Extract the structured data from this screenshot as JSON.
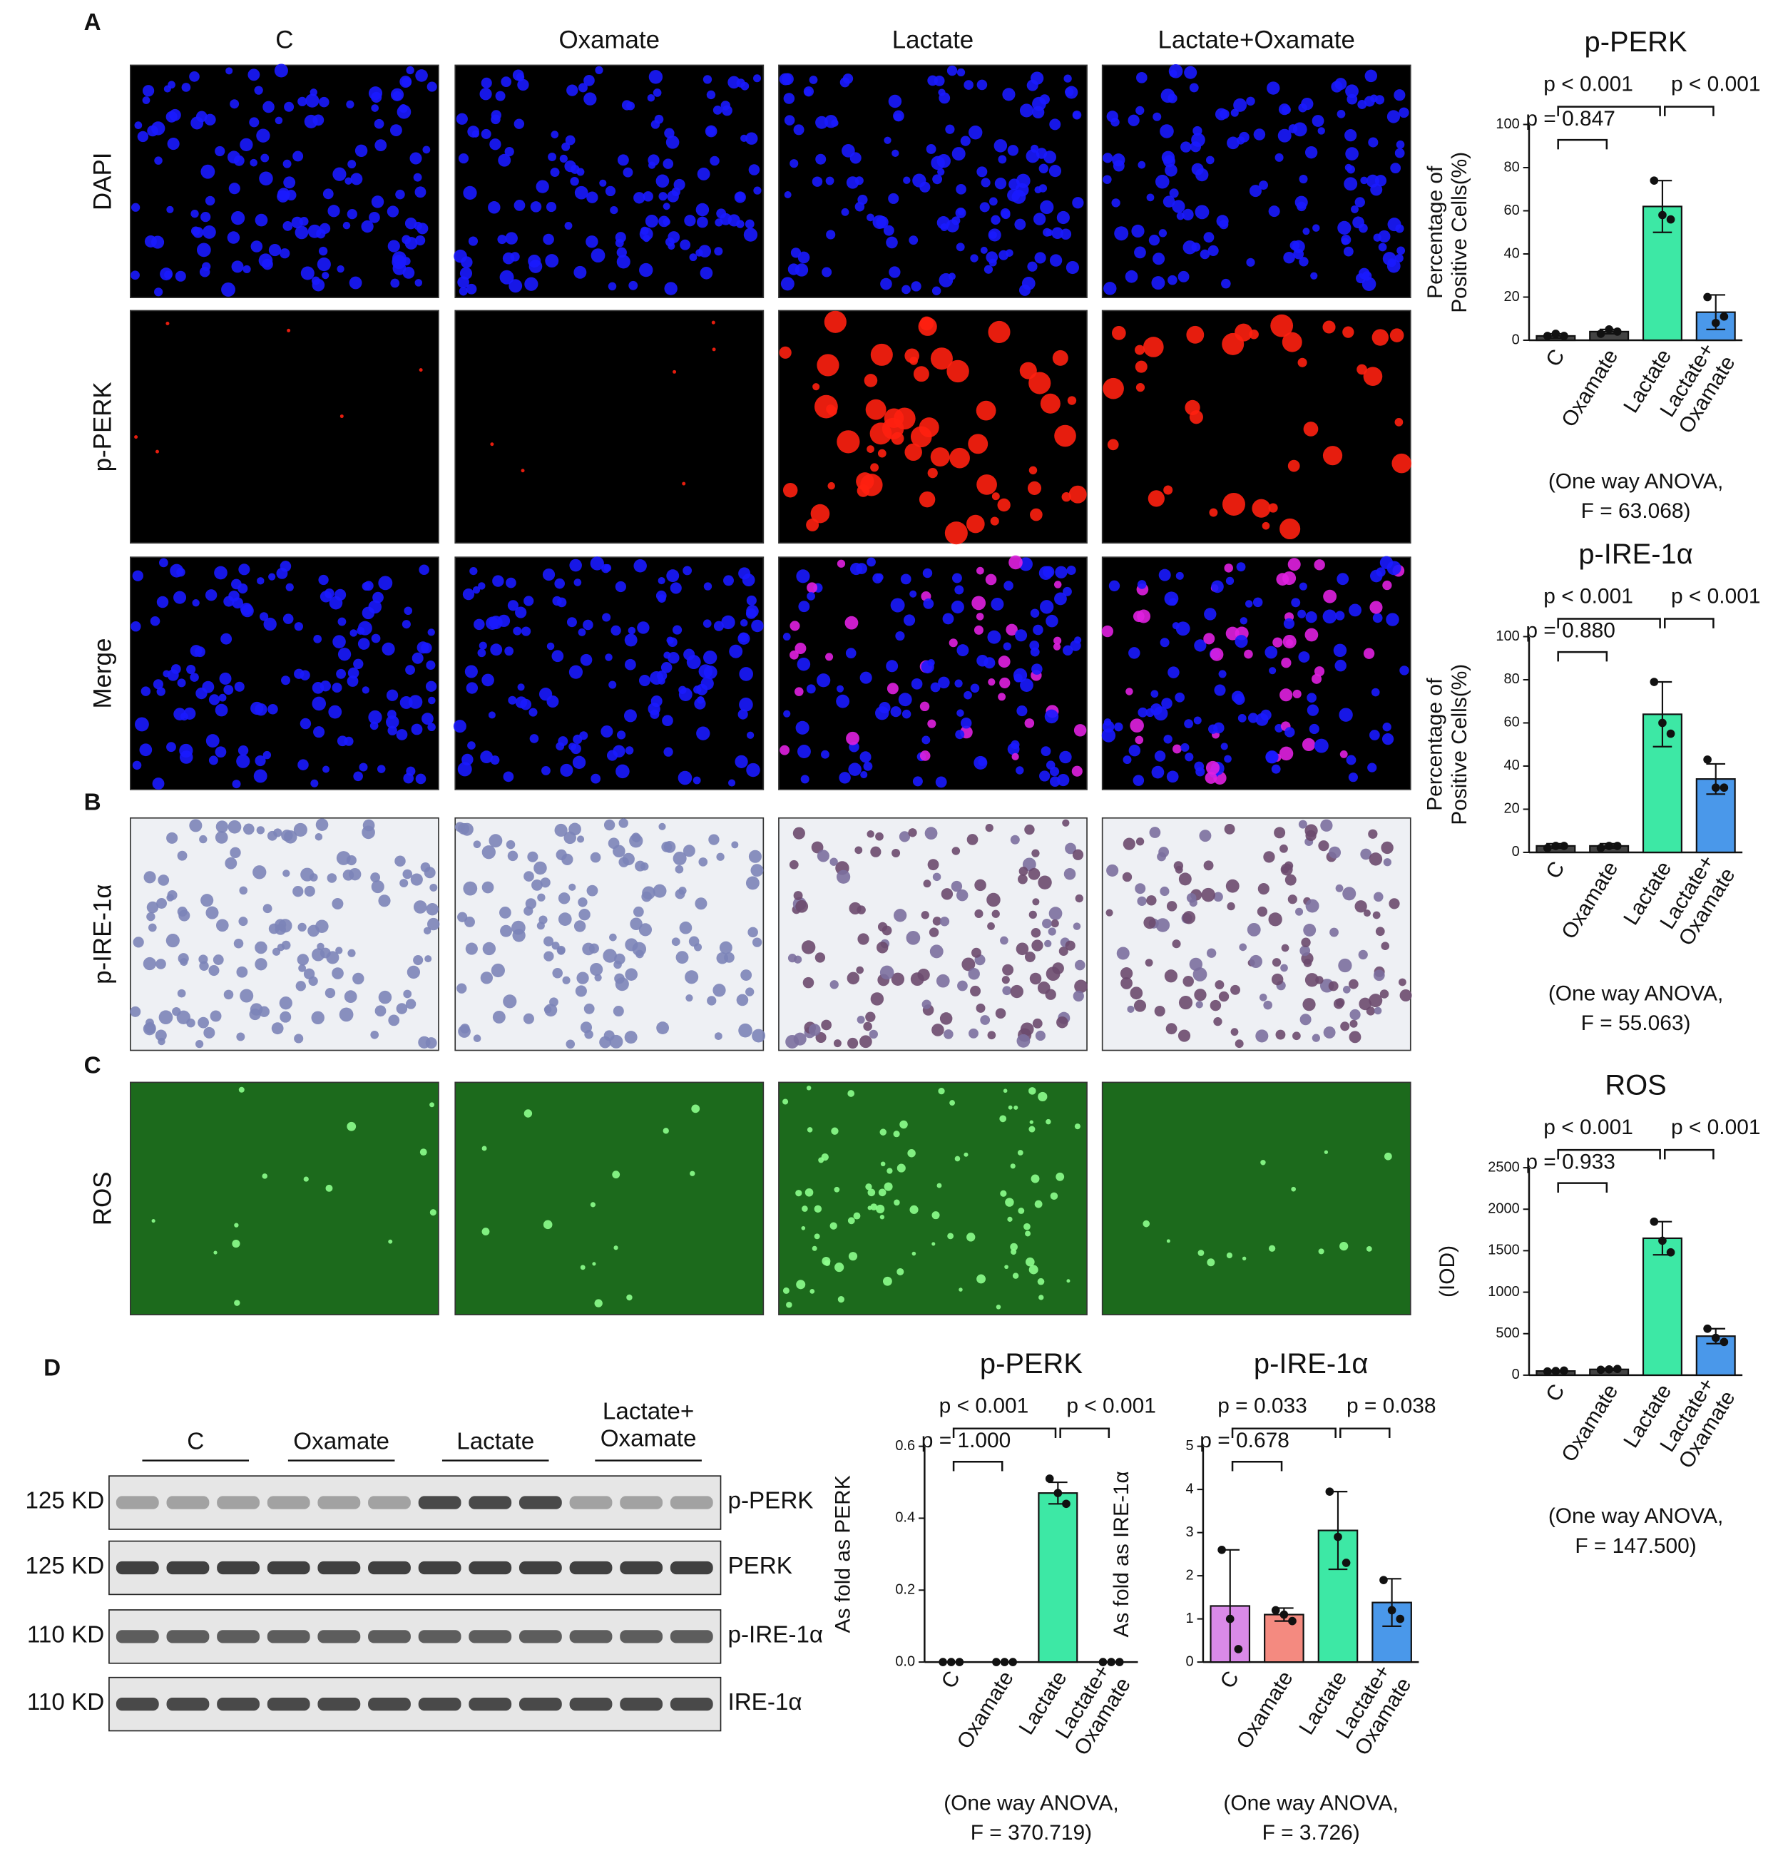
{
  "panels": [
    "A",
    "B",
    "C",
    "D"
  ],
  "microscopy": {
    "columns": [
      "C",
      "Oxamate",
      "Lactate",
      "Lactate+Oxamate"
    ],
    "rows": [
      "DAPI",
      "p-PERK",
      "Merge",
      "p-IRE-1α",
      "ROS"
    ]
  },
  "western_blot": {
    "groups": [
      "C",
      "Oxamate",
      "Lactate",
      "Lactate+\nOxamate"
    ],
    "rows": [
      {
        "size": "125 KD",
        "label": "p-PERK"
      },
      {
        "size": "125 KD",
        "label": "PERK"
      },
      {
        "size": "110 KD",
        "label": "p-IRE-1α"
      },
      {
        "size": "110 KD",
        "label": "IRE-1α"
      }
    ]
  },
  "chart_data": [
    {
      "type": "bar",
      "title": "p-PERK",
      "ylabel": "Percentage of\nPositive Cells(%)",
      "categories": [
        "C",
        "Oxamate",
        "Lactate",
        "Lactate+\nOxamate"
      ],
      "values": [
        2,
        4,
        62,
        13
      ],
      "errors": [
        1,
        1,
        12,
        8
      ],
      "points": [
        [
          2,
          3,
          2
        ],
        [
          3,
          5,
          4
        ],
        [
          74,
          58,
          56
        ],
        [
          20,
          8,
          11
        ]
      ],
      "colors": [
        "#444444",
        "#444444",
        "#3de8a5",
        "#4a98ea"
      ],
      "ylim": [
        0,
        100
      ],
      "yticks": [
        0,
        20,
        40,
        60,
        80,
        100
      ],
      "annotations": [
        "p < 0.001",
        "p < 0.001",
        "p = 0.847"
      ],
      "footnote": [
        "(One way ANOVA,",
        "F = 63.068)"
      ]
    },
    {
      "type": "bar",
      "title": "p-IRE-1α",
      "ylabel": "Percentage of\nPositive Cells(%)",
      "categories": [
        "C",
        "Oxamate",
        "Lactate",
        "Lactate+\nOxamate"
      ],
      "values": [
        3,
        3,
        64,
        34
      ],
      "errors": [
        1,
        1,
        15,
        7
      ],
      "points": [
        [
          2,
          3,
          3
        ],
        [
          2,
          3,
          3
        ],
        [
          79,
          60,
          55
        ],
        [
          43,
          30,
          30
        ]
      ],
      "colors": [
        "#444444",
        "#444444",
        "#3de8a5",
        "#4a98ea"
      ],
      "ylim": [
        0,
        100
      ],
      "yticks": [
        0,
        20,
        40,
        60,
        80,
        100
      ],
      "annotations": [
        "p < 0.001",
        "p < 0.001",
        "p = 0.880"
      ],
      "footnote": [
        "(One way ANOVA,",
        "F = 55.063)"
      ]
    },
    {
      "type": "bar",
      "title": "ROS",
      "ylabel": "(IOD)",
      "categories": [
        "C",
        "Oxamate",
        "Lactate",
        "Lactate+\nOxamate"
      ],
      "values": [
        50,
        70,
        1650,
        470
      ],
      "errors": [
        10,
        10,
        200,
        90
      ],
      "points": [
        [
          45,
          50,
          55
        ],
        [
          65,
          70,
          75
        ],
        [
          1850,
          1620,
          1480
        ],
        [
          560,
          450,
          400
        ]
      ],
      "colors": [
        "#444444",
        "#444444",
        "#3de8a5",
        "#4a98ea"
      ],
      "ylim": [
        0,
        2500
      ],
      "yticks": [
        0,
        500,
        1000,
        1500,
        2000,
        2500
      ],
      "annotations": [
        "p < 0.001",
        "p < 0.001",
        "p = 0.933"
      ],
      "footnote": [
        "(One way ANOVA,",
        "F = 147.500)"
      ]
    },
    {
      "type": "bar",
      "title": "p-PERK",
      "ylabel": "As fold as PERK",
      "categories": [
        "C",
        "Oxamate",
        "Lactate",
        "Lactate+\nOxamate"
      ],
      "values": [
        0,
        0,
        0.47,
        0
      ],
      "errors": [
        0,
        0,
        0.03,
        0
      ],
      "points": [
        [
          0,
          0,
          0
        ],
        [
          0,
          0,
          0
        ],
        [
          0.51,
          0.47,
          0.44
        ],
        [
          0,
          0,
          0
        ]
      ],
      "colors": [
        "#444444",
        "#444444",
        "#3de8a5",
        "#4a98ea"
      ],
      "ylim": [
        0,
        0.6
      ],
      "yticks": [
        {
          "value": 0,
          "label": "0.0"
        },
        0.2,
        0.4,
        0.6
      ],
      "annotations": [
        "p < 0.001",
        "p < 0.001",
        "p = 1.000"
      ],
      "footnote": [
        "(One way ANOVA,",
        "F = 370.719)"
      ]
    },
    {
      "type": "bar",
      "title": "p-IRE-1α",
      "ylabel": "As fold as IRE-1α",
      "categories": [
        "C",
        "Oxamate",
        "Lactate",
        "Lactate+\nOxamate"
      ],
      "values": [
        1.3,
        1.1,
        3.05,
        1.38
      ],
      "errors": [
        1.3,
        0.15,
        0.9,
        0.55
      ],
      "points": [
        [
          2.6,
          1.0,
          0.3
        ],
        [
          1.2,
          1.1,
          0.95
        ],
        [
          3.95,
          2.9,
          2.3
        ],
        [
          1.9,
          1.2,
          1.0
        ]
      ],
      "colors": [
        "#d98ae8",
        "#f48a80",
        "#3de8a5",
        "#4a98ea"
      ],
      "ylim": [
        0,
        5
      ],
      "yticks": [
        0,
        1,
        2,
        3,
        4,
        5
      ],
      "annotations": [
        "p = 0.033",
        "p = 0.038",
        "p = 0.678"
      ],
      "footnote": [
        "(One way ANOVA,",
        "F = 3.726)"
      ]
    }
  ]
}
